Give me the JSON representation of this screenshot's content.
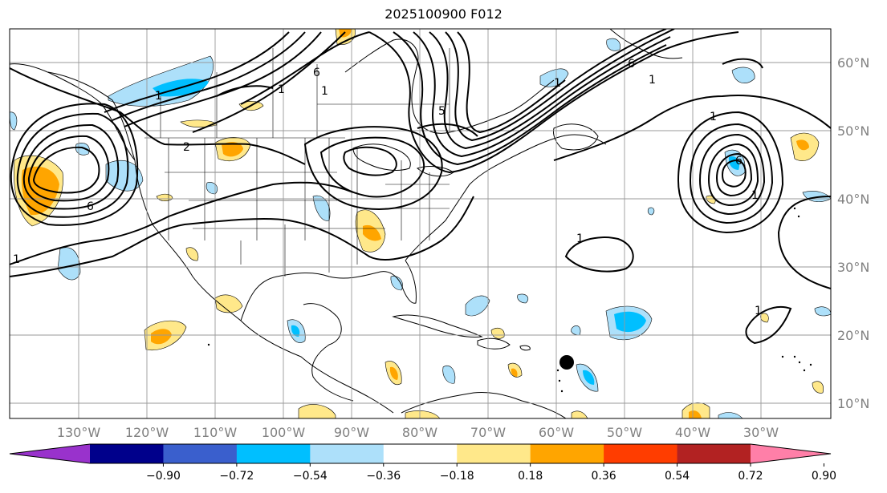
{
  "title": "2025100900 F012",
  "map": {
    "lon_labels": [
      "130°W",
      "120°W",
      "110°W",
      "100°W",
      "90°W",
      "80°W",
      "70°W",
      "60°W",
      "50°W",
      "40°W",
      "30°W"
    ],
    "lat_labels": [
      "60°N",
      "50°N",
      "40°N",
      "30°N",
      "20°N",
      "10°N"
    ],
    "contour_labels": [
      "1",
      "6",
      "1",
      "2",
      "6",
      "1",
      "5",
      "1",
      "6",
      "1",
      "1",
      "1",
      "6",
      "1",
      "1",
      "1"
    ],
    "marker": "storm-center-dot"
  },
  "colorbar": {
    "tick_labels": [
      "−0.90",
      "−0.72",
      "−0.54",
      "−0.36",
      "−0.18",
      "0.18",
      "0.36",
      "0.54",
      "0.72",
      "0.90"
    ],
    "colors": [
      "#9932CC",
      "#00008B",
      "#3A5FCD",
      "#00BFFF",
      "#ADE0FA",
      "#FFFFFF",
      "#FFE88A",
      "#FFA500",
      "#FF3D00",
      "#B22222",
      "#FF7FA8"
    ]
  }
}
